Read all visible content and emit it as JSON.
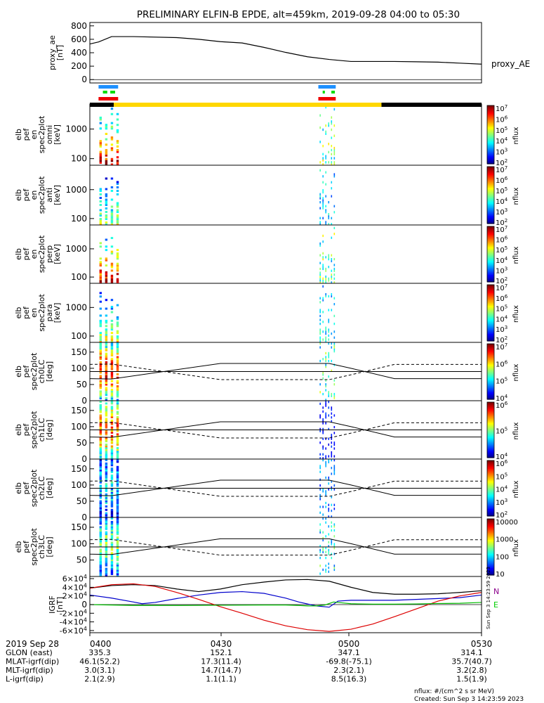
{
  "title": "PRELIMINARY ELFIN-B EPDE, alt=459km, 2019-09-28 04:00 to 05:30",
  "footer": {
    "units_note": "nflux: #/(cm^2 s sr MeV)",
    "created": "Created: Sun Sep  3 14:23:59 2023"
  },
  "side_stamp": "Sun Sep  3 14:23:59 2023",
  "time_axis": {
    "date_label": "2019 Sep 28",
    "ticks": [
      "0400",
      "0430",
      "0500",
      "0530"
    ],
    "tick_minutes": [
      0,
      30,
      60,
      90
    ],
    "range_minutes": [
      0,
      90
    ]
  },
  "ephemeris_rows": [
    {
      "label": "GLON (east)",
      "values": [
        "335.3",
        "152.1",
        "347.1",
        "314.1"
      ]
    },
    {
      "label": "MLAT-igrf(dip)",
      "values": [
        "46.1(52.2)",
        "17.3(11.4)",
        "-69.8(-75.1)",
        "35.7(40.7)"
      ]
    },
    {
      "label": "MLT-igrf(dip)",
      "values": [
        "3.0(3.1)",
        "14.7(14.7)",
        "2.3(2.1)",
        "3.2(2.8)"
      ]
    },
    {
      "label": "L-igrf(dip)",
      "values": [
        "2.1(2.9)",
        "1.1(1.1)",
        "8.5(16.3)",
        "1.5(1.9)"
      ]
    }
  ],
  "colors": {
    "bar_blue": "#1e90ff",
    "bar_green": "#00dd00",
    "bar_red": "#ee0000",
    "sunlight_yellow": "#ffd700",
    "shadow_black": "#000000",
    "grf_x": "#000000",
    "grf_y": "#0000cc",
    "grf_z": "#dd0000",
    "grf_total": "#00bb00",
    "label_N": "#8b008b",
    "label_E": "#00cc00"
  },
  "status_bars": {
    "blue_intervals_min": [
      [
        2,
        6.5
      ],
      [
        52.5,
        56.5
      ]
    ],
    "green_intervals_min": [
      [
        3,
        4
      ],
      [
        4.7,
        5.8
      ],
      [
        53.5,
        54
      ],
      [
        55.5,
        56.3
      ]
    ],
    "red_intervals_min": [
      [
        2,
        6.5
      ],
      [
        52.5,
        56.5
      ]
    ],
    "sunlight_min": [
      5.5,
      67
    ],
    "shadow_min": [
      [
        0,
        5.5
      ],
      [
        67,
        90
      ]
    ]
  },
  "chart_data": [
    {
      "type": "line",
      "ylabel_lines": [
        "proxy_ae",
        "[nT]"
      ],
      "yticks": [
        0,
        200,
        400,
        600,
        800
      ],
      "ylim": [
        -50,
        850
      ],
      "series": [
        {
          "name": "proxy_AE",
          "color": "#000000",
          "x": [
            0,
            2,
            5,
            10,
            20,
            25,
            30,
            35,
            40,
            45,
            50,
            55,
            60,
            65,
            70,
            75,
            80,
            85,
            90
          ],
          "y": [
            530,
            560,
            640,
            640,
            625,
            600,
            565,
            545,
            480,
            405,
            340,
            300,
            270,
            270,
            270,
            265,
            260,
            245,
            230
          ]
        }
      ]
    },
    {
      "type": "heatmap",
      "ylabel_lines": [
        "elb",
        "pef",
        "en",
        "spec2plot",
        "omni",
        "[keV]"
      ],
      "yticks": [
        100,
        1000
      ],
      "yscale": "log",
      "ylim": [
        60,
        7000
      ],
      "zlabel": "nflux",
      "zticks": [
        "10^2",
        "10^3",
        "10^4",
        "10^5",
        "10^6",
        "10^7"
      ],
      "intensity": [
        0.95,
        0.7
      ]
    },
    {
      "type": "heatmap",
      "ylabel_lines": [
        "elb",
        "pef",
        "en",
        "spec2plot",
        "anti",
        "[keV]"
      ],
      "yticks": [
        100,
        1000
      ],
      "yscale": "log",
      "ylim": [
        60,
        7000
      ],
      "zlabel": "nflux",
      "zticks": [
        "10^2",
        "10^3",
        "10^4",
        "10^5",
        "10^6",
        "10^7"
      ],
      "intensity": [
        0.55,
        0.45
      ]
    },
    {
      "type": "heatmap",
      "ylabel_lines": [
        "elb",
        "pef",
        "en",
        "spec2plot",
        "perp",
        "[keV]"
      ],
      "yticks": [
        100,
        1000
      ],
      "yscale": "log",
      "ylim": [
        60,
        7000
      ],
      "zlabel": "nflux",
      "zticks": [
        "10^2",
        "10^3",
        "10^4",
        "10^5",
        "10^6",
        "10^7"
      ],
      "intensity": [
        0.95,
        0.65
      ]
    },
    {
      "type": "heatmap",
      "ylabel_lines": [
        "elb",
        "pef",
        "en",
        "spec2plot",
        "para",
        "[keV]"
      ],
      "yticks": [
        100,
        1000
      ],
      "yscale": "log",
      "ylim": [
        60,
        7000
      ],
      "zlabel": "nflux",
      "zticks": [
        "10^2",
        "10^3",
        "10^4",
        "10^5",
        "10^6",
        "10^7"
      ],
      "intensity": [
        0.6,
        0.5
      ]
    },
    {
      "type": "heatmap",
      "ylabel_lines": [
        "elb",
        "pef",
        "spec2plot",
        "ch0LC",
        "[deg]"
      ],
      "yticks": [
        0,
        50,
        100,
        150
      ],
      "yticklabels": [
        "0",
        "50",
        "100",
        "150"
      ],
      "ylim": [
        0,
        180
      ],
      "zlabel": "nflux",
      "zticks": [
        "10^4",
        "10^5",
        "10^6",
        "10^7"
      ],
      "intensity": [
        0.85,
        0.6
      ],
      "lc_solid_x": [
        0,
        5,
        30,
        55,
        60,
        70,
        90
      ],
      "lc_solid_y": [
        68,
        67,
        115,
        115,
        100,
        68,
        68
      ],
      "lc_dashed_x": [
        0,
        5,
        30,
        55,
        60,
        70,
        90
      ],
      "lc_dashed_y": [
        112,
        113,
        65,
        65,
        80,
        112,
        112
      ],
      "mirror_y": 90
    },
    {
      "type": "heatmap",
      "ylabel_lines": [
        "elb",
        "pef",
        "spec2plot",
        "ch1LC",
        "[deg]"
      ],
      "yticks": [
        0,
        50,
        100,
        150
      ],
      "yticklabels": [
        "0",
        "50",
        "100",
        "150"
      ],
      "ylim": [
        0,
        180
      ],
      "zlabel": "nflux",
      "zticks": [
        "10^4",
        "10^5",
        "10^6"
      ],
      "intensity": [
        0.8,
        0.2
      ],
      "lc_solid_x": [
        0,
        5,
        30,
        55,
        60,
        70,
        90
      ],
      "lc_solid_y": [
        68,
        67,
        115,
        115,
        100,
        68,
        68
      ],
      "lc_dashed_x": [
        0,
        5,
        30,
        55,
        60,
        70,
        90
      ],
      "lc_dashed_y": [
        112,
        113,
        65,
        65,
        80,
        112,
        112
      ],
      "mirror_y": 90
    },
    {
      "type": "heatmap",
      "ylabel_lines": [
        "elb",
        "pef",
        "spec2plot",
        "ch2LC",
        "[deg]"
      ],
      "yticks": [
        0,
        50,
        100,
        150
      ],
      "yticklabels": [
        "0",
        "50",
        "100",
        "150"
      ],
      "ylim": [
        0,
        180
      ],
      "zlabel": "nflux",
      "zticks": [
        "10^2",
        "10^3",
        "10^4",
        "10^5",
        "10^6"
      ],
      "intensity": [
        0.35,
        0.35
      ],
      "lc_solid_x": [
        0,
        5,
        30,
        55,
        60,
        70,
        90
      ],
      "lc_solid_y": [
        68,
        67,
        115,
        115,
        100,
        68,
        68
      ],
      "lc_dashed_x": [
        0,
        5,
        30,
        55,
        60,
        70,
        90
      ],
      "lc_dashed_y": [
        112,
        113,
        65,
        65,
        80,
        112,
        112
      ],
      "mirror_y": 90
    },
    {
      "type": "heatmap",
      "ylabel_lines": [
        "elb",
        "pef",
        "spec2plot",
        "ch3LC",
        "[deg]"
      ],
      "yticks": [
        50,
        100,
        150
      ],
      "yticklabels": [
        "50",
        "100",
        "150"
      ],
      "ylim": [
        0,
        180
      ],
      "zlabel": "nflux",
      "zticks": [
        "10",
        "100",
        "1000",
        "10000"
      ],
      "intensity": [
        0.5,
        0.55
      ],
      "lc_solid_x": [
        0,
        5,
        30,
        55,
        60,
        70,
        90
      ],
      "lc_solid_y": [
        68,
        67,
        115,
        115,
        100,
        68,
        68
      ],
      "lc_dashed_x": [
        0,
        5,
        30,
        55,
        60,
        70,
        90
      ],
      "lc_dashed_y": [
        112,
        113,
        65,
        65,
        80,
        112,
        112
      ],
      "mirror_y": 90
    },
    {
      "type": "line",
      "ylabel_lines": [
        "IGRF",
        "[nT]"
      ],
      "yticks": [
        -60000,
        -40000,
        -20000,
        0,
        20000,
        40000,
        60000
      ],
      "yticklabels": [
        "-6×10^4",
        "-4×10^4",
        "-2×10^4",
        "0",
        "2×10^4",
        "4×10^4",
        "6×10^4"
      ],
      "ylim": [
        -65000,
        65000
      ],
      "component_labels": [
        "N",
        "E"
      ],
      "series": [
        {
          "color": "#000000",
          "x": [
            0,
            5,
            10,
            15,
            20,
            25,
            30,
            35,
            40,
            45,
            50,
            55,
            60,
            65,
            70,
            75,
            80,
            85,
            90
          ],
          "y": [
            38000,
            44000,
            46000,
            44000,
            36000,
            30000,
            36000,
            46000,
            52000,
            57000,
            58000,
            54000,
            40000,
            28000,
            24000,
            24000,
            25000,
            28000,
            32000
          ]
        },
        {
          "color": "#0000cc",
          "x": [
            0,
            5,
            10,
            12,
            15,
            20,
            25,
            30,
            35,
            40,
            45,
            48,
            52,
            55,
            57,
            60,
            65,
            70,
            75,
            80,
            85,
            90
          ],
          "y": [
            22000,
            15000,
            6000,
            2000,
            5000,
            14000,
            22000,
            28000,
            30000,
            26000,
            15000,
            6000,
            -3000,
            -6000,
            8000,
            10000,
            10000,
            10000,
            12000,
            14000,
            16000,
            22000
          ]
        },
        {
          "color": "#dd0000",
          "x": [
            0,
            5,
            10,
            15,
            20,
            25,
            30,
            35,
            40,
            45,
            50,
            55,
            60,
            65,
            70,
            75,
            80,
            85,
            90
          ],
          "y": [
            38000,
            46000,
            48000,
            42000,
            28000,
            12000,
            -5000,
            -20000,
            -36000,
            -49000,
            -58000,
            -62000,
            -57000,
            -45000,
            -28000,
            -10000,
            8000,
            20000,
            28000
          ]
        },
        {
          "color": "#00bb00",
          "x": [
            0,
            5,
            10,
            20,
            30,
            40,
            45,
            48,
            50,
            52,
            54,
            56,
            58,
            60,
            65,
            70,
            75,
            80,
            85,
            90
          ],
          "y": [
            0,
            -1000,
            -2000,
            -2000,
            -1500,
            -1000,
            -1000,
            -2000,
            -3000,
            -3000,
            -1000,
            6000,
            4000,
            2000,
            1000,
            1000,
            1500,
            2500,
            3000,
            5000
          ]
        }
      ]
    }
  ]
}
